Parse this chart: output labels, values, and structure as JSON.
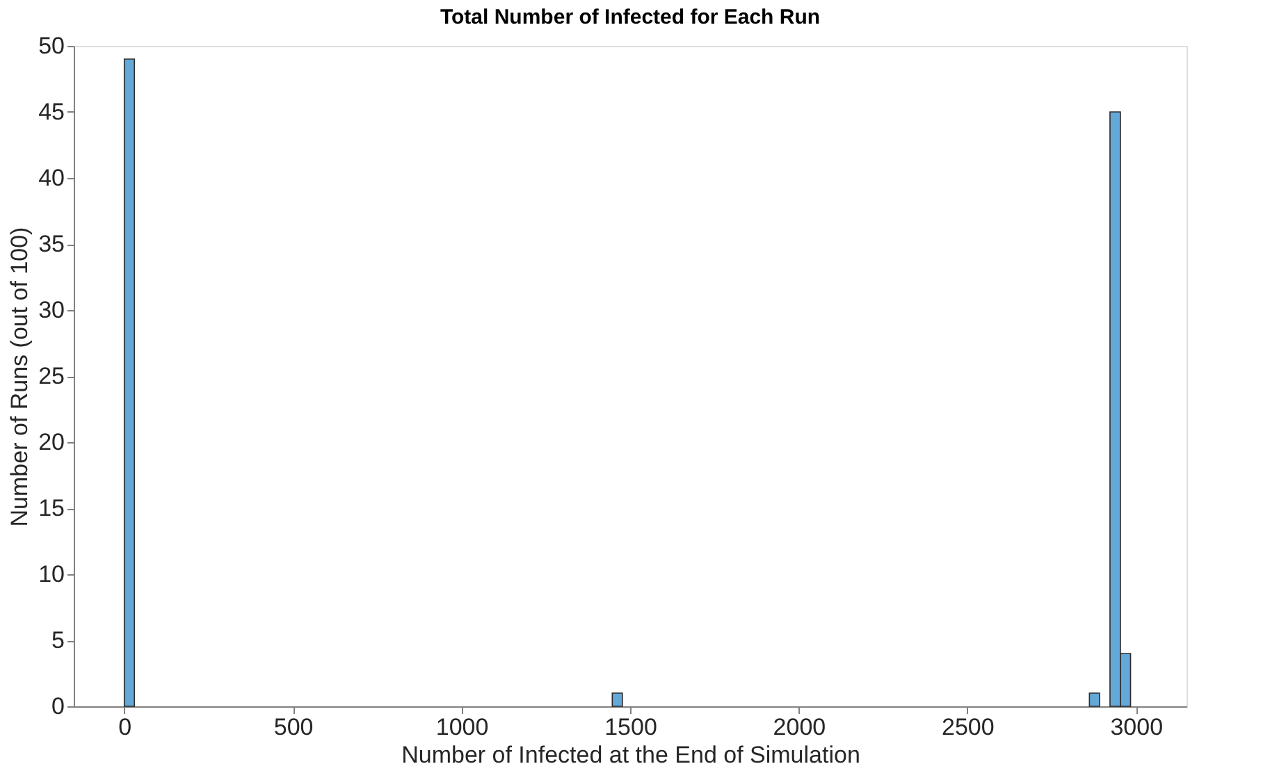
{
  "chart_data": {
    "type": "histogram",
    "title": "Total Number of Infected for Each Run",
    "xlabel": "Number of Infected at the End of Simulation",
    "ylabel": "Number of Runs (out of 100)",
    "bins": [
      0,
      30,
      1447,
      1477,
      2862,
      2892,
      2923,
      2954,
      2984
    ],
    "values": [
      49,
      0,
      1,
      0,
      1,
      0,
      45,
      4
    ],
    "color": "#64a8d8",
    "xlim": [
      -150,
      3150
    ],
    "xticks": [
      0,
      500,
      1000,
      1500,
      2000,
      2500,
      3000
    ],
    "ylim": [
      0,
      50
    ],
    "yticks": [
      0,
      5,
      10,
      15,
      20,
      25,
      30,
      35,
      40,
      45,
      50
    ],
    "grid": false
  }
}
